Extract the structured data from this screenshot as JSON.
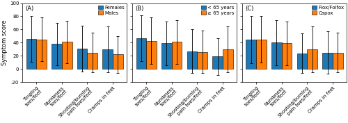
{
  "chart_data": [
    {
      "type": "bar",
      "ylabel": "Symptom score",
      "annotations": [
        "(A)"
      ],
      "categories": [
        "Tingling toes/feet",
        "Numbness toes/feet",
        "Shooting/burning pain toes/feet",
        "Cramps in feet"
      ],
      "series": [
        {
          "name": "Females",
          "values": [
            46,
            38,
            31,
            30
          ],
          "errors": [
            35,
            32,
            35,
            35
          ]
        },
        {
          "name": "Males",
          "values": [
            45,
            41,
            25,
            22
          ],
          "errors": [
            33,
            32,
            30,
            28
          ]
        }
      ],
      "ylim": [
        -20,
        100
      ],
      "yticks": [
        -20,
        0,
        20,
        40,
        60,
        80,
        100
      ],
      "legend": "upper right"
    },
    {
      "type": "bar",
      "annotations": [
        "(B)"
      ],
      "categories": [
        "Tingling toes/feet",
        "Numbness toes/feet",
        "Shooting/burning pain toes/feet",
        "Cramps in feet"
      ],
      "series": [
        {
          "name": "< 65 years",
          "values": [
            47,
            39,
            27,
            19
          ],
          "errors": [
            35,
            33,
            33,
            28
          ]
        },
        {
          "name": "≥ 65 years",
          "values": [
            43,
            41,
            26,
            30
          ],
          "errors": [
            35,
            33,
            32,
            35
          ]
        }
      ],
      "ylim": [
        -20,
        100
      ],
      "yticks": [
        -20,
        0,
        20,
        40,
        60,
        80,
        100
      ],
      "legend": "upper right",
      "tick_labels": "x"
    },
    {
      "type": "bar",
      "annotations": [
        "(C)"
      ],
      "categories": [
        "Tingling toes/feet",
        "Numbness toes/feet",
        "Shooting/burning pain toes/feet",
        "Cramps in feet"
      ],
      "series": [
        {
          "name": "Flox/Folfox",
          "values": [
            45,
            40,
            24,
            25
          ],
          "errors": [
            36,
            34,
            30,
            32
          ]
        },
        {
          "name": "Capox",
          "values": [
            45,
            39,
            30,
            25
          ],
          "errors": [
            35,
            33,
            35,
            30
          ]
        }
      ],
      "ylim": [
        -20,
        100
      ],
      "yticks": [
        -20,
        0,
        20,
        40,
        60,
        80,
        100
      ],
      "legend": "upper right",
      "tick_labels": "x"
    }
  ]
}
